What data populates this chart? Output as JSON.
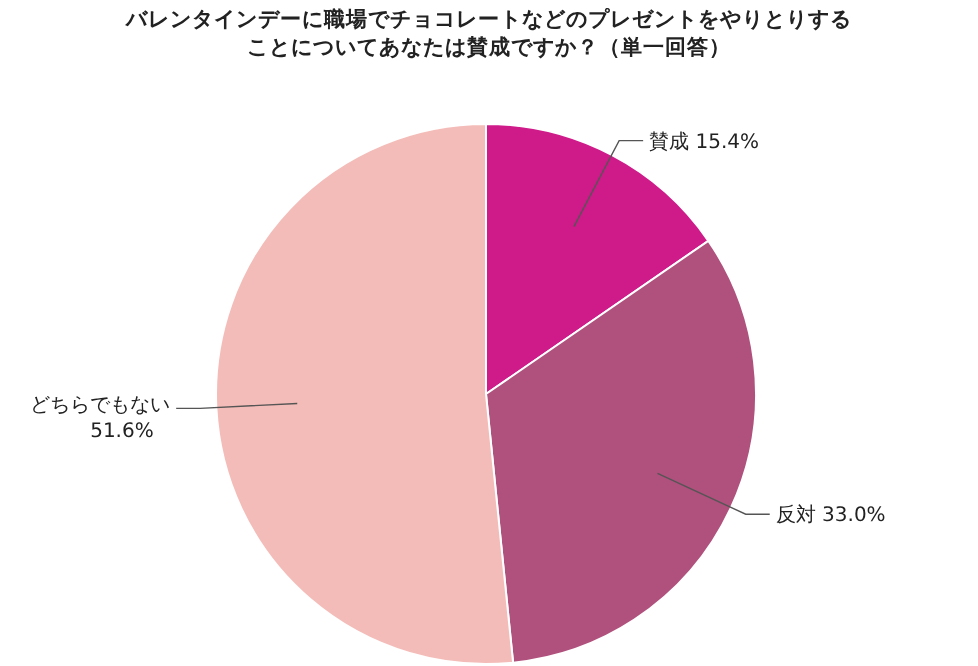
{
  "chart_data": {
    "type": "pie",
    "title": "バレンタインデーに職場でチョコレートなどのプレゼントをやりとりすることについてあなたは賛成ですか？（単一回答）",
    "categories": [
      "賛成",
      "反対",
      "どちらでもない"
    ],
    "values": [
      15.4,
      33.0,
      51.6
    ],
    "value_labels": [
      "15.4%",
      "33.0%",
      "51.6%"
    ],
    "colors": [
      "#cf1a8a",
      "#b0507c",
      "#f4bcb8"
    ],
    "legend": false
  }
}
